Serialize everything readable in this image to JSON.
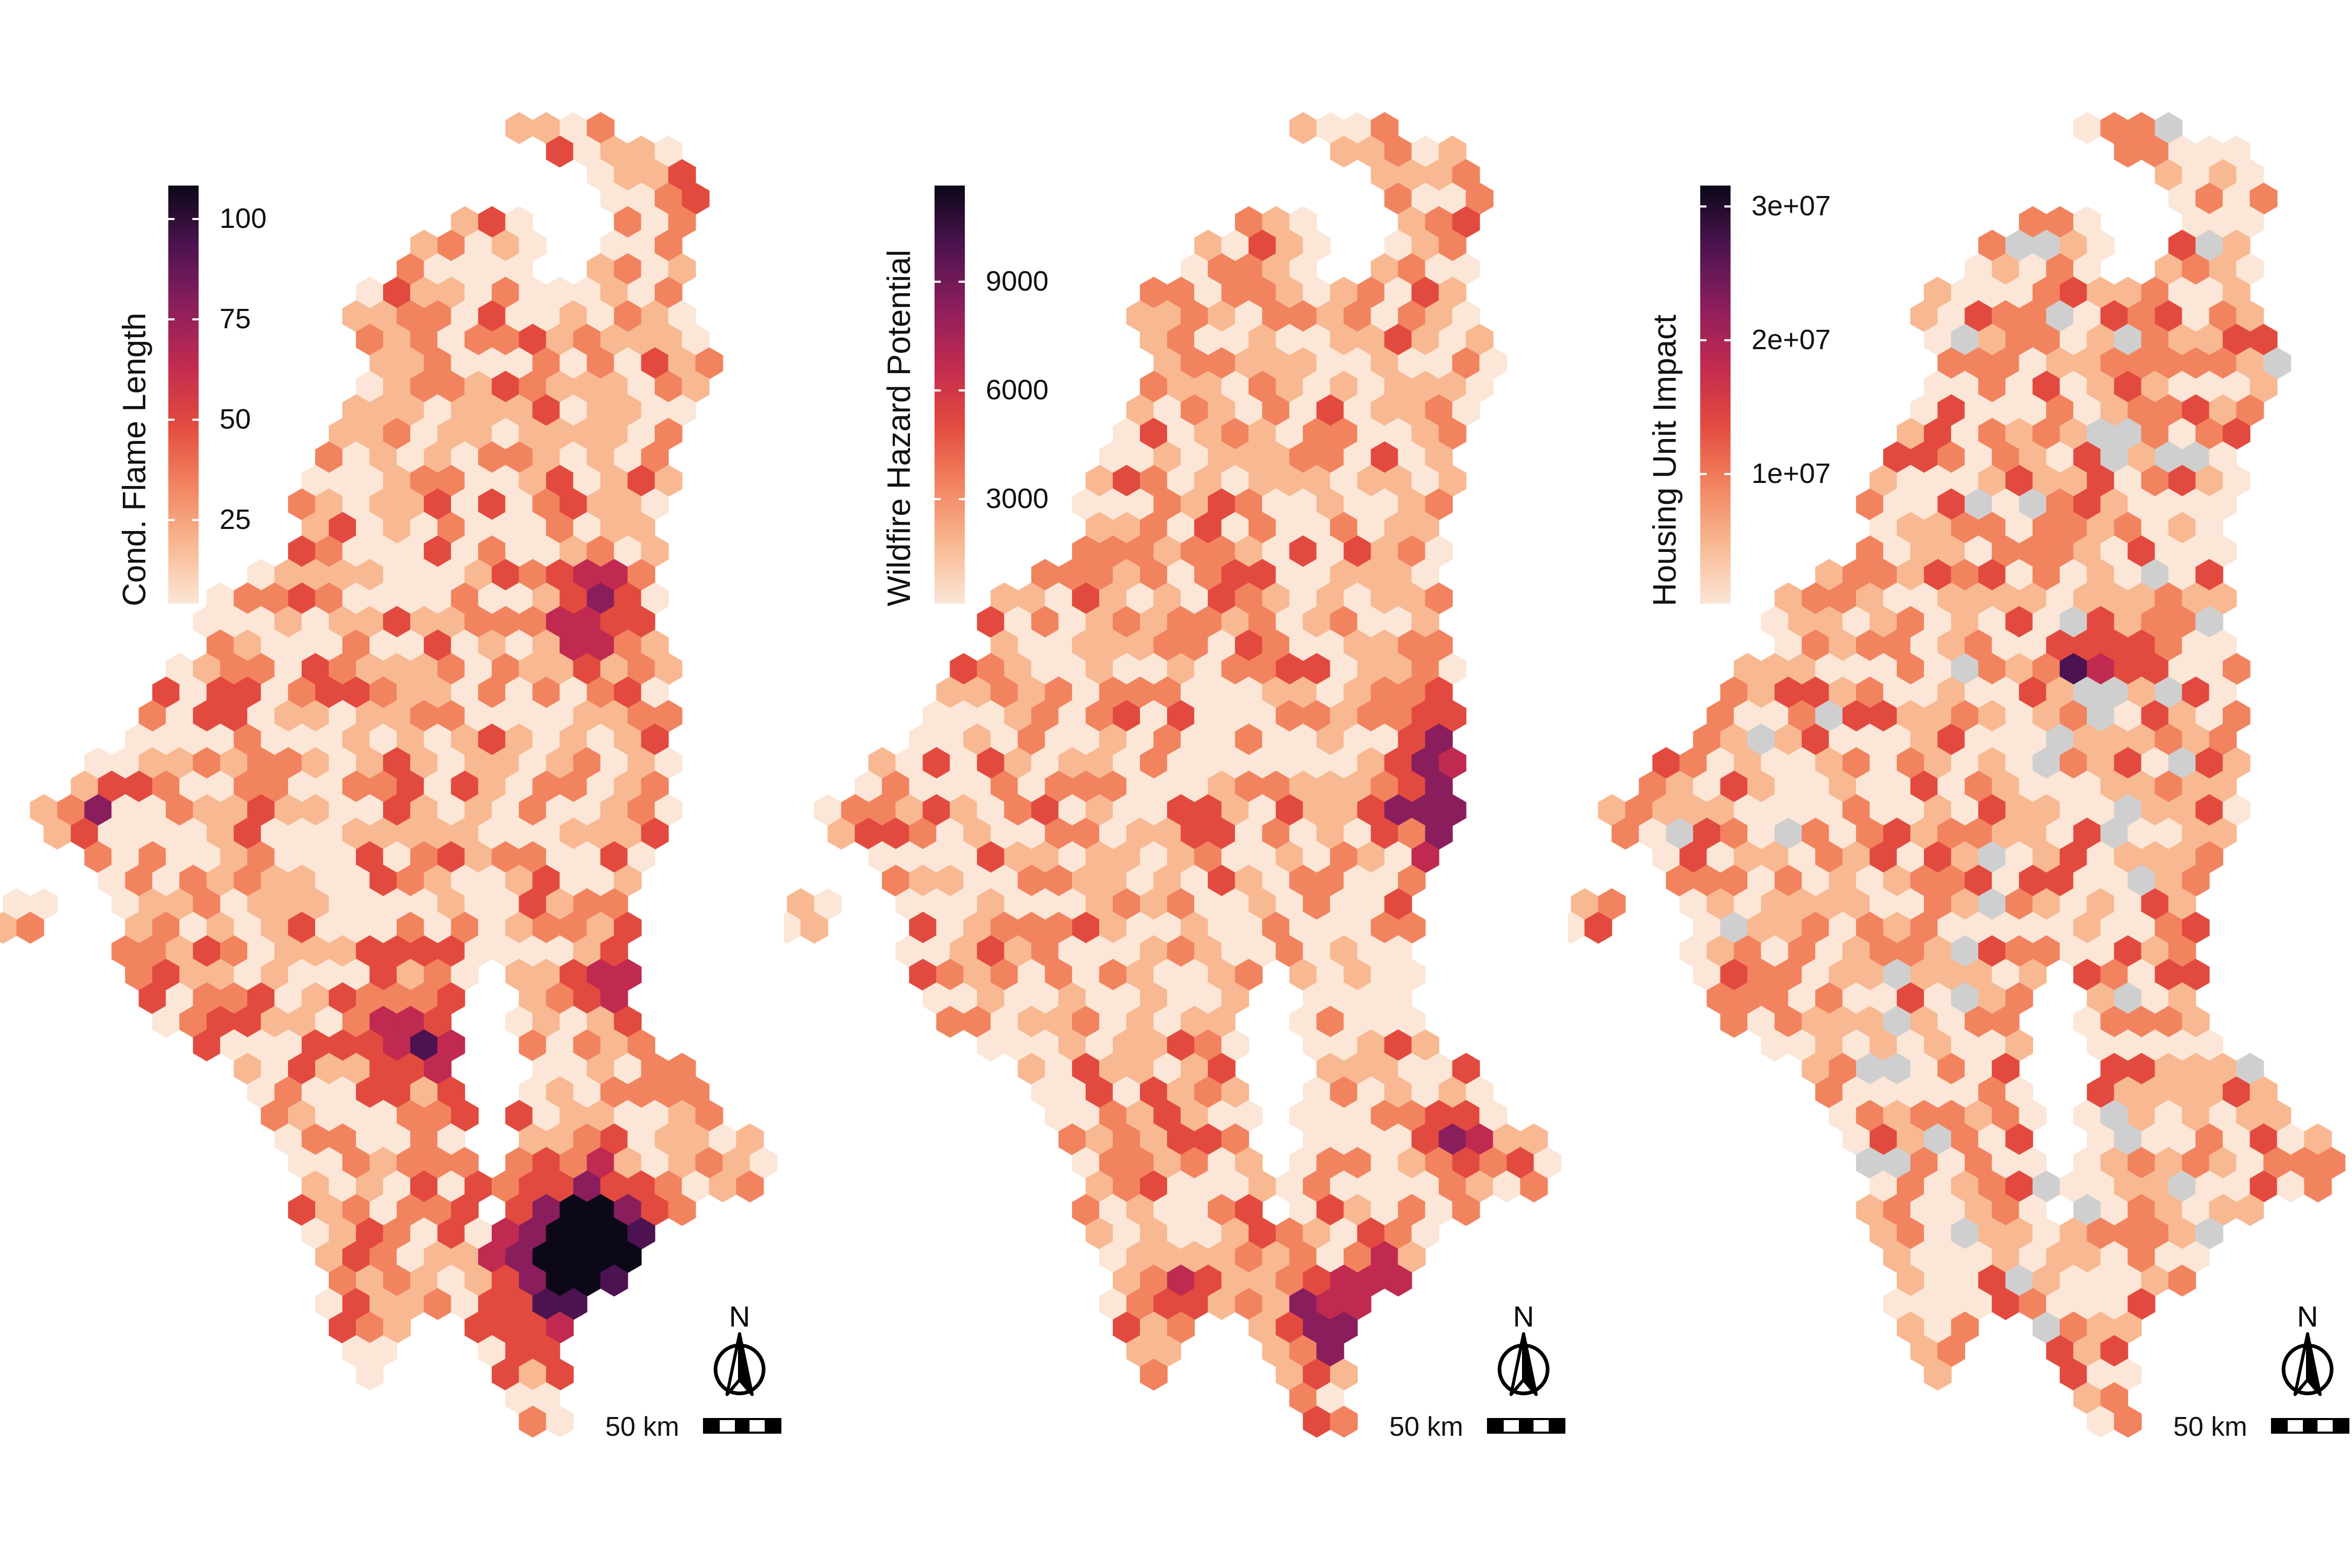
{
  "figure": {
    "panels": [
      {
        "id": "flame",
        "legend_title": "Cond. Flame Length",
        "legend_ticks": [
          "100",
          "75",
          "50",
          "25"
        ],
        "tick_fracs": [
          0.92,
          0.68,
          0.44,
          0.2
        ],
        "palette": [
          "#fbe6d7",
          "#f8b891",
          "#f2835f",
          "#e34a3f",
          "#c12a50",
          "#8a1e5c",
          "#4c1350",
          "#0c0818"
        ],
        "scale_label": "50 km",
        "north_label": "N",
        "nodata": false,
        "hotspot_fraction": 0.55
      },
      {
        "id": "hazard",
        "legend_title": "Wildfire Hazard Potential",
        "legend_ticks": [
          "9000",
          "6000",
          "3000"
        ],
        "tick_fracs": [
          0.77,
          0.51,
          0.25
        ],
        "palette": [
          "#fbe6d7",
          "#f8b891",
          "#f2835f",
          "#e34a3f",
          "#c12a50",
          "#8a1e5c",
          "#4c1350",
          "#0c0818"
        ],
        "scale_label": "50 km",
        "north_label": "N",
        "nodata": false,
        "hotspot_fraction": 0.25
      },
      {
        "id": "housing",
        "legend_title": "Housing Unit Impact",
        "legend_ticks": [
          "3e+07",
          "2e+07",
          "1e+07"
        ],
        "tick_fracs": [
          0.95,
          0.63,
          0.31
        ],
        "palette": [
          "#fbe6d7",
          "#f8b891",
          "#f2835f",
          "#e34a3f",
          "#c12a50",
          "#8a1e5c",
          "#4c1350",
          "#0c0818"
        ],
        "scale_label": "50 km",
        "north_label": "N",
        "nodata": true,
        "hotspot_fraction": 0.06
      }
    ],
    "nodata_color": "#cfcfcf"
  }
}
